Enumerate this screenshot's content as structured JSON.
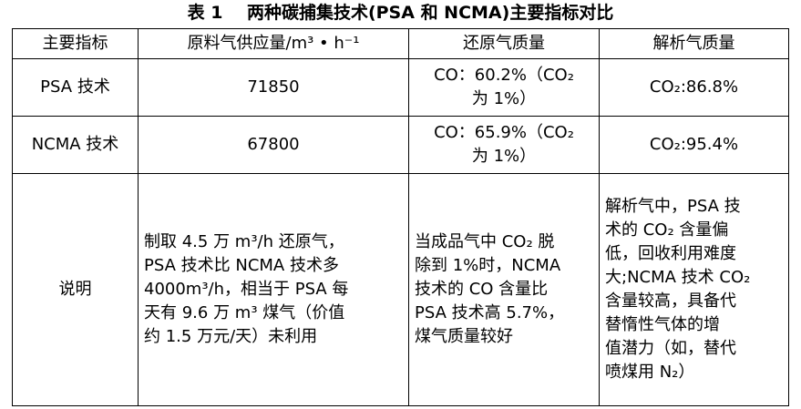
{
  "title": "表 1    两种碳捕集技术(PSA 和 NCMA)主要指标对比",
  "headers": [
    "主要指标",
    "原料气供应量/m³ • h⁻¹",
    "还原气质量",
    "解析气质量"
  ],
  "rows": [
    {
      "name": "PSA 技术",
      "supply": "71850",
      "reduce_l1": "CO：60.2%（CO₂",
      "reduce_l2": "为 1%）",
      "desorb": "CO₂:86.8%"
    },
    {
      "name": "NCMA 技术",
      "supply": "67800",
      "reduce_l1": "CO：65.9%（CO₂",
      "reduce_l2": "为 1%）",
      "desorb": "CO₂:95.4%"
    }
  ],
  "notes": {
    "label": "说明",
    "supply_lines": [
      "制取 4.5 万 m³/h 还原气，",
      "PSA 技术比 NCMA 技术多",
      "4000m³/h，相当于 PSA 每",
      "天有 9.6 万 m³ 煤气（价值",
      "约 1.5 万元/天）未利用"
    ],
    "reduce_lines": [
      "当成品气中 CO₂ 脱",
      "除到 1%时，NCMA",
      "技术的 CO 含量比",
      "PSA 技术高 5.7%，",
      "煤气质量较好"
    ],
    "desorb_lines": [
      "解析气中，PSA 技",
      "术的 CO₂ 含量偏",
      "低，回收利用难度",
      "大;NCMA 技术 CO₂",
      "含量较高，具备代",
      "替惰性气体的增",
      "值潜力（如，替代",
      "喷煤用 N₂）"
    ]
  }
}
